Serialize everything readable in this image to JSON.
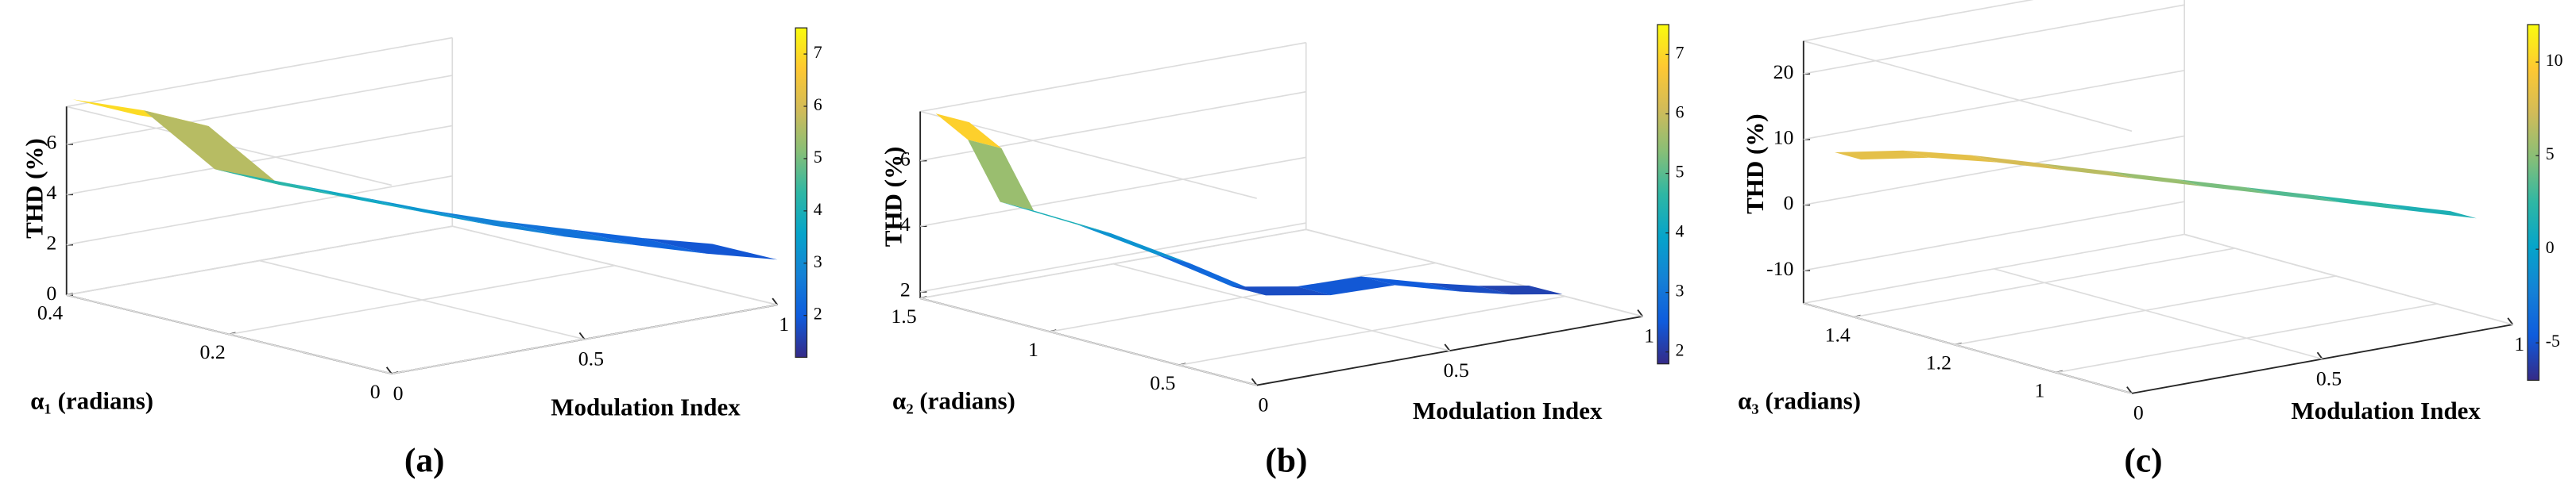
{
  "chart_data": [
    {
      "type": "surface",
      "caption": "(a)",
      "xlabel": "Modulation Index",
      "ylabel": "α₁ (radians)",
      "zlabel": "THD (%)",
      "x": [
        0.1,
        0.2,
        0.3,
        0.4,
        0.5,
        0.6,
        0.7,
        0.8,
        0.9,
        1.0
      ],
      "y": [
        0.4,
        0.36,
        0.32,
        0.28,
        0.24,
        0.2,
        0.16,
        0.12,
        0.08,
        0.04
      ],
      "values": [
        7.2,
        6.8,
        4.5,
        4.0,
        3.5,
        3.0,
        2.6,
        2.3,
        2.0,
        1.8
      ],
      "xlim": [
        0,
        1
      ],
      "ylim": [
        0,
        0.4
      ],
      "zlim": [
        0,
        7.5
      ],
      "xticks": [
        0,
        0.5,
        1
      ],
      "yticks": [
        0,
        0.2,
        0.4
      ],
      "zticks": [
        0,
        2,
        4,
        6
      ],
      "clim": [
        1.2,
        7.5
      ],
      "cticks": [
        2,
        3,
        4,
        5,
        6,
        7
      ],
      "colormap": "parula"
    },
    {
      "type": "surface",
      "caption": "(b)",
      "xlabel": "Modulation Index",
      "ylabel": "α₂ (radians)",
      "zlabel": "THD (%)",
      "x": [
        0.05,
        0.1,
        0.15,
        0.25,
        0.35,
        0.45,
        0.55,
        0.65,
        0.75,
        0.85,
        0.95
      ],
      "y": [
        1.45,
        1.4,
        1.35,
        1.2,
        1.05,
        0.9,
        0.8,
        0.7,
        0.6,
        0.55,
        0.5
      ],
      "values": [
        7.3,
        6.5,
        4.6,
        4.0,
        3.2,
        2.3,
        2.3,
        2.6,
        2.4,
        2.2,
        2.1
      ],
      "xlim": [
        0,
        1
      ],
      "ylim": [
        0.2,
        1.5
      ],
      "zlim": [
        1.8,
        7.5
      ],
      "xticks": [
        0,
        0.5,
        1
      ],
      "yticks": [
        0.5,
        1,
        1.5
      ],
      "zticks": [
        2,
        4,
        6
      ],
      "clim": [
        1.8,
        7.5
      ],
      "cticks": [
        2,
        3,
        4,
        5,
        6,
        7
      ],
      "colormap": "parula"
    },
    {
      "type": "surface",
      "caption": "(c)",
      "xlabel": "Modulation Index",
      "ylabel": "α₃ (radians)",
      "zlabel": "THD (%)",
      "x": [
        0.05,
        0.15,
        0.25,
        0.35,
        0.45,
        0.55,
        0.65,
        0.75,
        0.85,
        0.95
      ],
      "y": [
        1.45,
        1.39,
        1.33,
        1.27,
        1.21,
        1.15,
        1.09,
        1.03,
        0.97,
        0.91
      ],
      "values": [
        8,
        8.5,
        8,
        7,
        6,
        5,
        4,
        3,
        2,
        1
      ],
      "xlim": [
        0,
        1
      ],
      "ylim": [
        0.85,
        1.5
      ],
      "zlim": [
        -15,
        25
      ],
      "xticks": [
        0,
        0.5,
        1
      ],
      "yticks": [
        1,
        1.2,
        1.4
      ],
      "zticks": [
        -10,
        0,
        10,
        20
      ],
      "clim": [
        -7,
        12
      ],
      "cticks": [
        -5,
        0,
        5,
        10
      ],
      "colormap": "parula"
    }
  ]
}
